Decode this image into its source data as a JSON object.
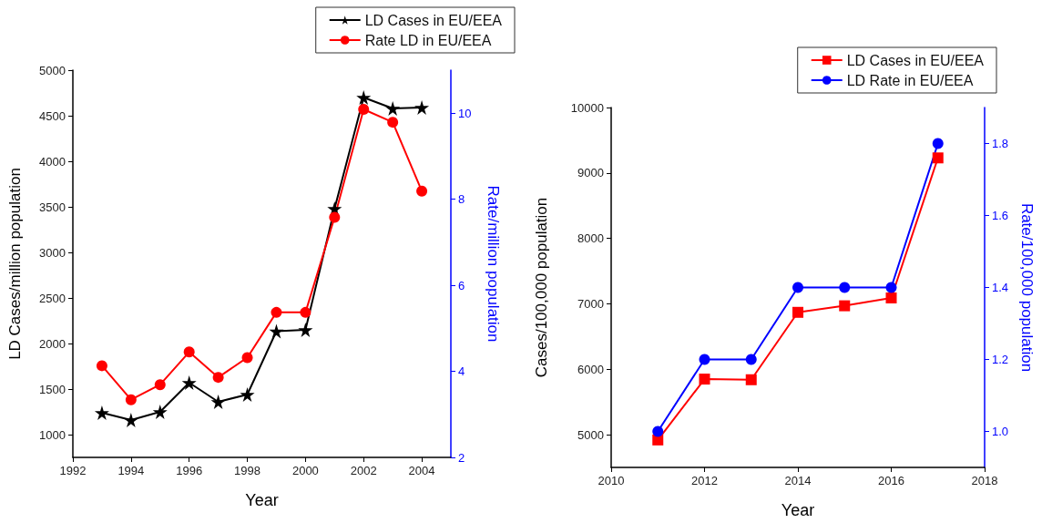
{
  "chart_data": [
    {
      "type": "line",
      "xlabel": "Year",
      "ylabel": "LD Cases/million population",
      "y2label": "Rate/million population",
      "x": [
        1993,
        1994,
        1995,
        1996,
        1997,
        1998,
        1999,
        2000,
        2001,
        2002,
        2003,
        2004
      ],
      "series": [
        {
          "name": "LD Cases in EU/EEA",
          "color": "#000000",
          "marker": "star",
          "values": [
            1240,
            1160,
            1250,
            1570,
            1360,
            1440,
            2135,
            2150,
            3480,
            4700,
            4580,
            4590
          ]
        },
        {
          "name": "Rate LD in EU/EEA",
          "color": "#ff0000",
          "marker": "circle",
          "axis": "y2",
          "values": [
            4.13,
            3.34,
            3.69,
            4.45,
            3.86,
            4.32,
            5.37,
            5.37,
            7.58,
            10.09,
            9.79,
            8.19
          ]
        }
      ],
      "xlim": [
        1992,
        2005
      ],
      "xticks": [
        1992,
        1994,
        1996,
        1998,
        2000,
        2002,
        2004
      ],
      "ylim": [
        750,
        5000
      ],
      "yticks": [
        1000,
        1500,
        2000,
        2500,
        3000,
        3500,
        4000,
        4500,
        5000
      ],
      "y2lim": [
        2,
        11
      ],
      "y2ticks": [
        2,
        4,
        6,
        8,
        10
      ],
      "grid": false,
      "legend": "top right"
    },
    {
      "type": "line",
      "xlabel": "Year",
      "ylabel": "Cases/100,000 population",
      "y2label": "Rate/100,000 population",
      "x": [
        2011,
        2012,
        2013,
        2014,
        2015,
        2016,
        2017
      ],
      "series": [
        {
          "name": "LD Cases in EU/EEA",
          "color": "#ff0000",
          "marker": "square",
          "values": [
            4920,
            5850,
            5840,
            6870,
            6970,
            7090,
            9230
          ]
        },
        {
          "name": "LD Rate in EU/EEA",
          "color": "#0000ff",
          "marker": "circle",
          "axis": "y2",
          "values": [
            1.0,
            1.2,
            1.2,
            1.4,
            1.4,
            1.4,
            1.8
          ]
        }
      ],
      "xlim": [
        2010,
        2018
      ],
      "xticks": [
        2010,
        2012,
        2014,
        2016,
        2018
      ],
      "ylim": [
        4500,
        10000
      ],
      "yticks": [
        5000,
        6000,
        7000,
        8000,
        9000,
        10000
      ],
      "y2lim": [
        0.9,
        1.9
      ],
      "y2ticks": [
        {
          "value": 1.0,
          "label": "1.0"
        },
        1.2,
        1.4,
        1.6,
        1.8
      ],
      "grid": false,
      "legend": "top right"
    }
  ]
}
